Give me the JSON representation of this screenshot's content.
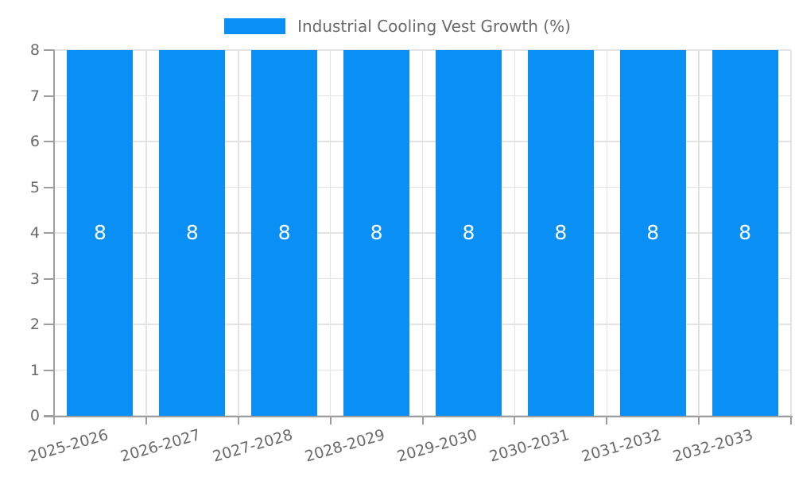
{
  "legend": {
    "label": "Industrial Cooling Vest Growth (%)",
    "swatch_color": "#0A90F5"
  },
  "chart_data": {
    "type": "bar",
    "title": "",
    "categories": [
      "2025-2026",
      "2026-2027",
      "2027-2028",
      "2028-2029",
      "2029-2030",
      "2030-2031",
      "2031-2032",
      "2032-2033"
    ],
    "series": [
      {
        "name": "Industrial Cooling Vest Growth (%)",
        "values": [
          8,
          8,
          8,
          8,
          8,
          8,
          8,
          8
        ],
        "color": "#0A90F5"
      }
    ],
    "data_labels": [
      "8",
      "8",
      "8",
      "8",
      "8",
      "8",
      "8",
      "8"
    ],
    "xlabel": "",
    "ylabel": "",
    "ylim": [
      0,
      8
    ],
    "y_ticks": [
      0,
      1,
      2,
      3,
      4,
      5,
      6,
      7,
      8
    ],
    "grid": true,
    "legend_position": "top",
    "x_tick_rotation_deg": -16,
    "colors": {
      "bar": "#0A90F5",
      "data_label": "#FFFFFF",
      "axis_line": "#9E9E9E",
      "grid_line": "#E3E3E3",
      "tick_label": "#6B6B6B",
      "legend_text": "#6B6B6B",
      "background": "#FFFFFF"
    }
  }
}
